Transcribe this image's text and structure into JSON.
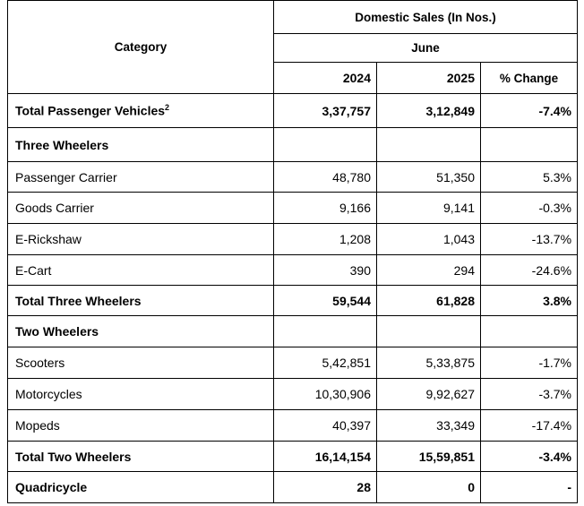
{
  "header": {
    "category": "Category",
    "group": "Domestic Sales (In Nos.)",
    "month": "June",
    "columns": [
      "2024",
      "2025",
      "% Change"
    ]
  },
  "table": {
    "rows": [
      {
        "category": "Total Passenger Vehicles",
        "superscript": "2",
        "values": [
          "3,37,757",
          "3,12,849",
          "-7.4%"
        ]
      },
      {
        "category": "Three Wheelers"
      },
      {
        "category": "Passenger Carrier",
        "values": [
          "48,780",
          "51,350",
          "5.3%"
        ]
      },
      {
        "category": "Goods Carrier",
        "values": [
          "9,166",
          "9,141",
          "-0.3%"
        ]
      },
      {
        "category": "E-Rickshaw",
        "values": [
          "1,208",
          "1,043",
          "-13.7%"
        ]
      },
      {
        "category": "E-Cart",
        "values": [
          "390",
          "294",
          "-24.6%"
        ]
      },
      {
        "category": "Total Three Wheelers",
        "values": [
          "59,544",
          "61,828",
          "3.8%"
        ]
      },
      {
        "category": "Two Wheelers"
      },
      {
        "category": "Scooters",
        "values": [
          "5,42,851",
          "5,33,875",
          "-1.7%"
        ]
      },
      {
        "category": "Motorcycles",
        "values": [
          "10,30,906",
          "9,92,627",
          "-3.7%"
        ]
      },
      {
        "category": "Mopeds",
        "values": [
          "40,397",
          "33,349",
          "-17.4%"
        ]
      },
      {
        "category": "Total Two Wheelers",
        "values": [
          "16,14,154",
          "15,59,851",
          "-3.4%"
        ]
      },
      {
        "category": "Quadricycle",
        "values": [
          "28",
          "0",
          "-"
        ]
      }
    ]
  }
}
